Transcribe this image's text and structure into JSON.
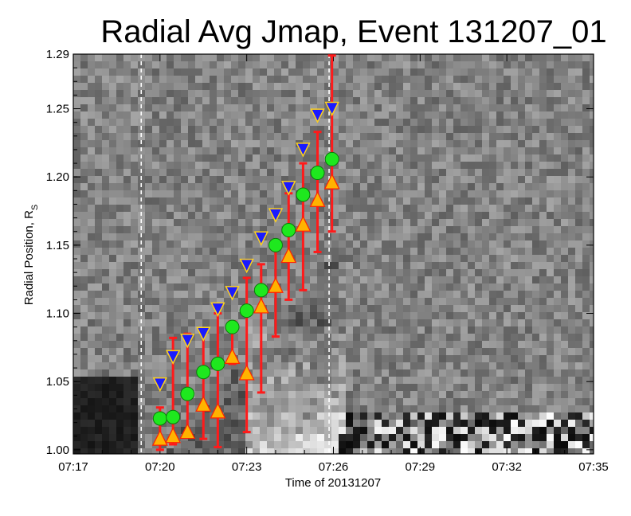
{
  "chart_data": {
    "type": "scatter",
    "title": "Radial Avg Jmap, Event 131207_01",
    "xlabel": "Time of 20131207",
    "ylabel_main": "Radial Position, R",
    "ylabel_sub": "S",
    "x_tick_labels": [
      "07:17",
      "07:20",
      "07:23",
      "07:26",
      "07:29",
      "07:32",
      "07:35"
    ],
    "x_tick_minutes": [
      0,
      3,
      6,
      9,
      12,
      15,
      18
    ],
    "y_tick_labels": [
      "1.00",
      "1.05",
      "1.10",
      "1.15",
      "1.20",
      "1.25",
      "1.29"
    ],
    "y_tick_values": [
      1.0,
      1.05,
      1.1,
      1.15,
      1.2,
      1.25,
      1.29
    ],
    "xlim_minutes": [
      0,
      18
    ],
    "ylim": [
      0.997,
      1.29
    ],
    "background": "grayscale radial-average J-map image",
    "vertical_markers_minutes": [
      2.35,
      8.85
    ],
    "series_colors": {
      "error_bar": "#ff1a1a",
      "upper": "#1a1aff",
      "upper_stroke": "#ffd21a",
      "middle": "#1ee81e",
      "lower": "#ffb300",
      "lower_stroke": "#ff2200"
    },
    "points": [
      {
        "t": 3.0,
        "mid": 1.023,
        "low": 1.008,
        "up": 1.048,
        "err_lo": 1.0,
        "err_hi": 1.031
      },
      {
        "t": 3.45,
        "mid": 1.024,
        "low": 1.01,
        "up": 1.068,
        "err_lo": 1.004,
        "err_hi": 1.082
      },
      {
        "t": 3.95,
        "mid": 1.041,
        "low": 1.013,
        "up": 1.08,
        "err_lo": 1.01,
        "err_hi": 1.085
      },
      {
        "t": 4.5,
        "mid": 1.057,
        "low": 1.033,
        "up": 1.085,
        "err_lo": 1.008,
        "err_hi": 1.086
      },
      {
        "t": 5.0,
        "mid": 1.063,
        "low": 1.028,
        "up": 1.103,
        "err_lo": 1.002,
        "err_hi": 1.1
      },
      {
        "t": 5.5,
        "mid": 1.09,
        "low": 1.068,
        "up": 1.115,
        "err_lo": 1.063,
        "err_hi": 1.094
      },
      {
        "t": 6.0,
        "mid": 1.102,
        "low": 1.056,
        "up": 1.135,
        "err_lo": 1.013,
        "err_hi": 1.126
      },
      {
        "t": 6.5,
        "mid": 1.117,
        "low": 1.105,
        "up": 1.155,
        "err_lo": 1.042,
        "err_hi": 1.136
      },
      {
        "t": 7.0,
        "mid": 1.15,
        "low": 1.12,
        "up": 1.172,
        "err_lo": 1.083,
        "err_hi": 1.153
      },
      {
        "t": 7.45,
        "mid": 1.161,
        "low": 1.142,
        "up": 1.192,
        "err_lo": 1.11,
        "err_hi": 1.188
      },
      {
        "t": 7.95,
        "mid": 1.187,
        "low": 1.165,
        "up": 1.22,
        "err_lo": 1.117,
        "err_hi": 1.21
      },
      {
        "t": 8.45,
        "mid": 1.203,
        "low": 1.183,
        "up": 1.245,
        "err_lo": 1.145,
        "err_hi": 1.233
      },
      {
        "t": 8.95,
        "mid": 1.213,
        "low": 1.196,
        "up": 1.25,
        "err_lo": 1.16,
        "err_hi": 1.289
      }
    ]
  }
}
